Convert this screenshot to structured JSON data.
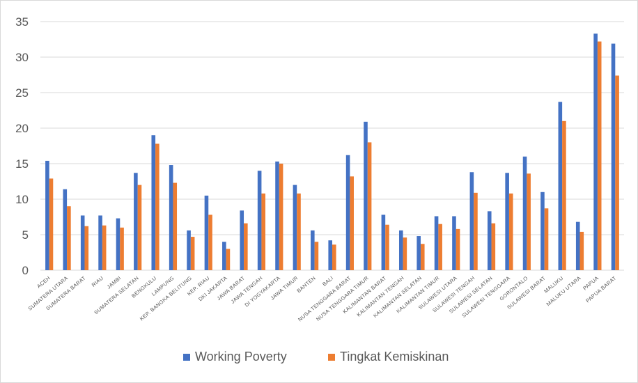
{
  "chart_data": {
    "type": "bar",
    "title": "",
    "xlabel": "",
    "ylabel": "",
    "ylim": [
      0,
      35
    ],
    "yticks": [
      0,
      5,
      10,
      15,
      20,
      25,
      30,
      35
    ],
    "grid": true,
    "legend_position": "bottom",
    "categories": [
      "ACEH",
      "SUMATERA UTARA",
      "SUMATERA BARAT",
      "RIAU",
      "JAMBI",
      "SUMATERA SELATAN",
      "BENGKULU",
      "LAMPUNG",
      "KEP. BANGKA BELITUNG",
      "KEP. RIAU",
      "DKI JAKARTA",
      "JAWA BARAT",
      "JAWA TENGAH",
      "DI YOGYAKARTA",
      "JAWA TIMUR",
      "BANTEN",
      "BALI",
      "NUSA TENGGARA BARAT",
      "NUSA TENGGARA TIMUR",
      "KALIMANTAN BARAT",
      "KALIMANTAN TENGAH",
      "KALIMANTAN SELATAN",
      "KALIMANTAN TIMUR",
      "SULAWESI UTARA",
      "SULAWESI TENGAH",
      "SULAWESI SELATAN",
      "SULAWESI TENGGARA",
      "GORONTALO",
      "SULAWESI BARAT",
      "MALUKU",
      "MALUKU UTARA",
      "PAPUA",
      "PAPUA BARAT"
    ],
    "series": [
      {
        "name": "Working Poverty",
        "color": "#4472c4",
        "values": [
          15.4,
          11.4,
          7.7,
          7.7,
          7.3,
          13.7,
          19.0,
          14.8,
          5.6,
          10.5,
          4.0,
          8.4,
          14.0,
          15.3,
          12.0,
          5.6,
          4.2,
          16.2,
          20.9,
          7.8,
          5.6,
          4.8,
          7.6,
          7.6,
          13.8,
          8.3,
          13.7,
          16.0,
          11.0,
          23.7,
          6.8,
          33.3,
          31.9
        ]
      },
      {
        "name": "Tingkat Kemiskinan",
        "color": "#ed7d31",
        "values": [
          12.9,
          9.0,
          6.2,
          6.3,
          6.0,
          12.0,
          17.8,
          12.3,
          4.7,
          7.8,
          3.0,
          6.6,
          10.8,
          15.0,
          10.8,
          4.0,
          3.6,
          13.2,
          18.0,
          6.4,
          4.6,
          3.7,
          6.5,
          5.8,
          10.9,
          6.6,
          10.8,
          13.6,
          8.7,
          21.0,
          5.4,
          32.2,
          27.4
        ]
      }
    ]
  }
}
